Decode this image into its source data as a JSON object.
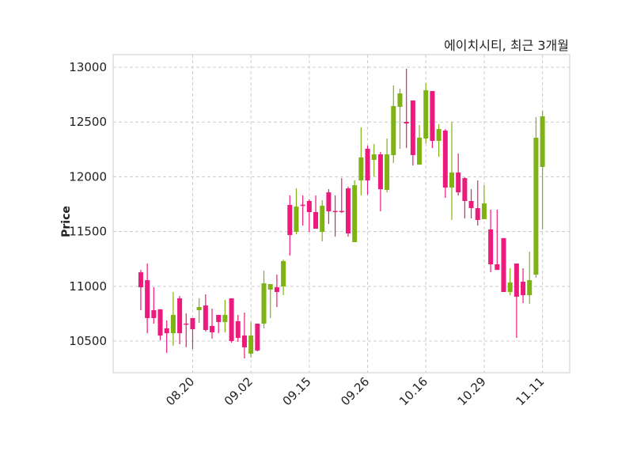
{
  "chart_data": {
    "type": "candlestick",
    "title": "에이치시티, 최근 3개월",
    "xlabel": "",
    "ylabel": "Price",
    "ylim": [
      10211,
      13116
    ],
    "xlim": [
      -4.27,
      66.2
    ],
    "grid": true,
    "colors": {
      "up": "#7fb214",
      "down": "#ec1a7c",
      "grid": "#cccccc",
      "frame": "#dddddd"
    },
    "yticks": [
      10500,
      11000,
      11500,
      12000,
      12500,
      13000
    ],
    "xticks": [
      {
        "index": 8,
        "label": "08.20"
      },
      {
        "index": 17,
        "label": "09.02"
      },
      {
        "index": 26,
        "label": "09.15"
      },
      {
        "index": 35,
        "label": "09.26"
      },
      {
        "index": 44,
        "label": "10.16"
      },
      {
        "index": 53,
        "label": "10.29"
      },
      {
        "index": 62,
        "label": "11.11"
      }
    ],
    "ohlc": [
      [
        11128,
        11150,
        10783,
        10991
      ],
      [
        11056,
        11208,
        10572,
        10710
      ],
      [
        10782,
        10991,
        10659,
        10710
      ],
      [
        10790,
        10790,
        10507,
        10550
      ],
      [
        10616,
        10688,
        10392,
        10572
      ],
      [
        10572,
        10948,
        10457,
        10739
      ],
      [
        10890,
        10912,
        10471,
        10572
      ],
      [
        10660,
        10753,
        10443,
        10652
      ],
      [
        10710,
        10710,
        10428,
        10608
      ],
      [
        10782,
        10890,
        10666,
        10811
      ],
      [
        10825,
        10927,
        10587,
        10601
      ],
      [
        10638,
        10796,
        10522,
        10580
      ],
      [
        10739,
        10739,
        10572,
        10674
      ],
      [
        10674,
        10876,
        10580,
        10739
      ],
      [
        10890,
        10890,
        10486,
        10500
      ],
      [
        10681,
        10739,
        10493,
        10529
      ],
      [
        10551,
        10760,
        10341,
        10443
      ],
      [
        10385,
        10674,
        10349,
        10551
      ],
      [
        10659,
        10659,
        10406,
        10414
      ],
      [
        10659,
        11143,
        10616,
        11027
      ],
      [
        10970,
        11020,
        10710,
        11020
      ],
      [
        10991,
        11107,
        10811,
        10948
      ],
      [
        10999,
        11244,
        10919,
        11230
      ],
      [
        11743,
        11830,
        11280,
        11468
      ],
      [
        11497,
        11894,
        11475,
        11728
      ],
      [
        11745,
        11830,
        11555,
        11740
      ],
      [
        11779,
        11793,
        11497,
        11678
      ],
      [
        11678,
        11830,
        11526,
        11526
      ],
      [
        11497,
        11786,
        11410,
        11736
      ],
      [
        11858,
        11887,
        11569,
        11685
      ],
      [
        11688,
        11830,
        11454,
        11685
      ],
      [
        11688,
        11988,
        11670,
        11685
      ],
      [
        11894,
        11909,
        11454,
        11483
      ],
      [
        11403,
        11967,
        11403,
        11923
      ],
      [
        11967,
        12451,
        11830,
        12177
      ],
      [
        12256,
        12285,
        11837,
        11967
      ],
      [
        12155,
        12300,
        12003,
        12205
      ],
      [
        12205,
        12227,
        11685,
        11887
      ],
      [
        11880,
        12350,
        11858,
        12205
      ],
      [
        12198,
        12834,
        12126,
        12646
      ],
      [
        12639,
        12805,
        12256,
        12762
      ],
      [
        12502,
        12986,
        12263,
        12487
      ],
      [
        12697,
        12697,
        12104,
        12198
      ],
      [
        12111,
        12473,
        12111,
        12357
      ],
      [
        12350,
        12855,
        12306,
        12790
      ],
      [
        12783,
        12783,
        12263,
        12328
      ],
      [
        12328,
        12480,
        12184,
        12436
      ],
      [
        12422,
        12436,
        11808,
        11902
      ],
      [
        11902,
        12502,
        11606,
        12039
      ],
      [
        12039,
        12213,
        11829,
        11858
      ],
      [
        11988,
        11995,
        11620,
        11779
      ],
      [
        11779,
        11887,
        11620,
        11714
      ],
      [
        11714,
        11967,
        11555,
        11606
      ],
      [
        11613,
        11923,
        11613,
        11757
      ],
      [
        11519,
        11700,
        11129,
        11201
      ],
      [
        11201,
        11700,
        11150,
        11150
      ],
      [
        11440,
        11440,
        10948,
        10948
      ],
      [
        10948,
        11165,
        10919,
        11035
      ],
      [
        11208,
        11208,
        10529,
        10905
      ],
      [
        11042,
        11165,
        10847,
        10919
      ],
      [
        10919,
        11316,
        10840,
        11056
      ],
      [
        11107,
        12545,
        11078,
        12357
      ],
      [
        12090,
        12602,
        11519,
        12552
      ]
    ]
  }
}
